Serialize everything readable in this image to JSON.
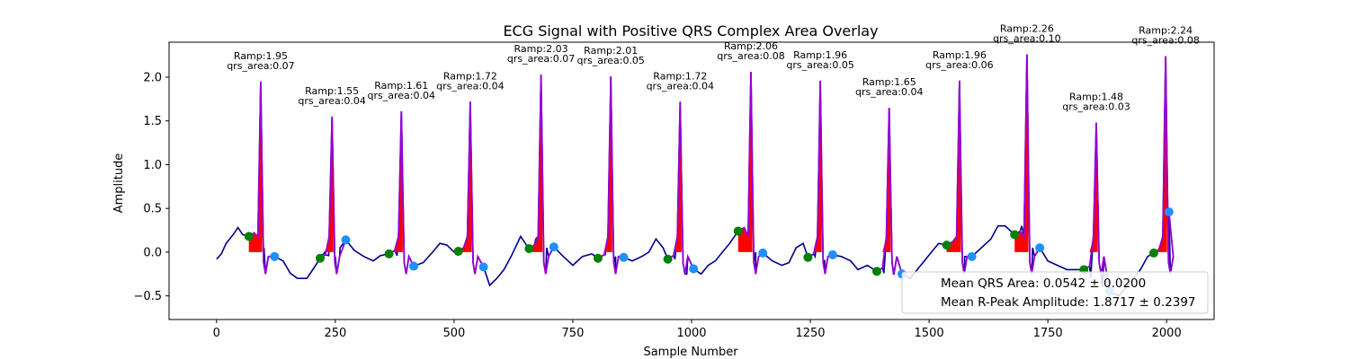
{
  "chart_data": {
    "type": "line",
    "title": "ECG Signal with Positive QRS Complex Area Overlay",
    "xlabel": "Sample Number",
    "ylabel": "Amplitude",
    "xlim": [
      -100,
      2100
    ],
    "ylim": [
      -0.77,
      2.4
    ],
    "xticks": [
      0,
      250,
      500,
      750,
      1000,
      1250,
      1500,
      1750,
      2000
    ],
    "yticks": [
      -0.5,
      0.0,
      0.5,
      1.0,
      1.5,
      2.0
    ],
    "xtick_labels": [
      "0",
      "250",
      "500",
      "750",
      "1000",
      "1250",
      "1500",
      "1750",
      "2000"
    ],
    "ytick_labels": [
      "−0.5",
      "0.0",
      "0.5",
      "1.0",
      "1.5",
      "2.0"
    ],
    "grid": false,
    "colors": {
      "signal": "#00008b",
      "qrs_segment": "#9400d3",
      "qrs_area": "#ff0000",
      "onset_marker": "#008000",
      "offset_marker": "#1e90ff"
    },
    "beats": [
      {
        "r_x": 93,
        "ramp": 1.95,
        "qrs_area": 0.07,
        "ramp_label": "Ramp:1.95",
        "area_label": "qrs_area:0.07",
        "onset_x": 68,
        "onset_y": 0.18,
        "offset_x": 122,
        "offset_y": -0.05
      },
      {
        "r_x": 243,
        "ramp": 1.55,
        "qrs_area": 0.04,
        "ramp_label": "Ramp:1.55",
        "area_label": "qrs_area:0.04",
        "onset_x": 218,
        "onset_y": -0.07,
        "offset_x": 272,
        "offset_y": 0.14
      },
      {
        "r_x": 389,
        "ramp": 1.61,
        "qrs_area": 0.04,
        "ramp_label": "Ramp:1.61",
        "area_label": "qrs_area:0.04",
        "onset_x": 363,
        "onset_y": -0.02,
        "offset_x": 415,
        "offset_y": -0.16
      },
      {
        "r_x": 534,
        "ramp": 1.72,
        "qrs_area": 0.04,
        "ramp_label": "Ramp:1.72",
        "area_label": "qrs_area:0.04",
        "onset_x": 509,
        "onset_y": 0.01,
        "offset_x": 562,
        "offset_y": -0.17
      },
      {
        "r_x": 683,
        "ramp": 2.03,
        "qrs_area": 0.07,
        "ramp_label": "Ramp:2.03",
        "area_label": "qrs_area:0.07",
        "onset_x": 658,
        "onset_y": 0.04,
        "offset_x": 710,
        "offset_y": 0.06
      },
      {
        "r_x": 830,
        "ramp": 2.01,
        "qrs_area": 0.05,
        "ramp_label": "Ramp:2.01",
        "area_label": "qrs_area:0.05",
        "onset_x": 803,
        "onset_y": -0.07,
        "offset_x": 857,
        "offset_y": -0.06
      },
      {
        "r_x": 976,
        "ramp": 1.72,
        "qrs_area": 0.04,
        "ramp_label": "Ramp:1.72",
        "area_label": "qrs_area:0.04",
        "onset_x": 950,
        "onset_y": -0.08,
        "offset_x": 1004,
        "offset_y": -0.19
      },
      {
        "r_x": 1125,
        "ramp": 2.06,
        "qrs_area": 0.08,
        "ramp_label": "Ramp:2.06",
        "area_label": "qrs_area:0.08",
        "onset_x": 1098,
        "onset_y": 0.24,
        "offset_x": 1150,
        "offset_y": -0.01
      },
      {
        "r_x": 1271,
        "ramp": 1.96,
        "qrs_area": 0.05,
        "ramp_label": "Ramp:1.96",
        "area_label": "qrs_area:0.05",
        "onset_x": 1245,
        "onset_y": -0.06,
        "offset_x": 1297,
        "offset_y": -0.03
      },
      {
        "r_x": 1416,
        "ramp": 1.65,
        "qrs_area": 0.04,
        "ramp_label": "Ramp:1.65",
        "area_label": "qrs_area:0.04",
        "onset_x": 1390,
        "onset_y": -0.22,
        "offset_x": 1443,
        "offset_y": -0.25
      },
      {
        "r_x": 1564,
        "ramp": 1.96,
        "qrs_area": 0.06,
        "ramp_label": "Ramp:1.96",
        "area_label": "qrs_area:0.06",
        "onset_x": 1537,
        "onset_y": 0.08,
        "offset_x": 1590,
        "offset_y": -0.05
      },
      {
        "r_x": 1706,
        "ramp": 2.26,
        "qrs_area": 0.1,
        "ramp_label": "Ramp:2.26",
        "area_label": "qrs_area:0.10",
        "onset_x": 1680,
        "onset_y": 0.2,
        "offset_x": 1733,
        "offset_y": 0.05
      },
      {
        "r_x": 1852,
        "ramp": 1.48,
        "qrs_area": 0.03,
        "ramp_label": "Ramp:1.48",
        "area_label": "qrs_area:0.03",
        "onset_x": 1826,
        "onset_y": -0.2,
        "offset_x": 1880,
        "offset_y": -0.45
      },
      {
        "r_x": 1998,
        "ramp": 2.24,
        "qrs_area": 0.08,
        "ramp_label": "Ramp:2.24",
        "area_label": "qrs_area:0.08",
        "onset_x": 1973,
        "onset_y": -0.01,
        "offset_x": 2005,
        "offset_y": 0.46
      }
    ],
    "baseline_points": [
      [
        0,
        -0.08
      ],
      [
        10,
        -0.02
      ],
      [
        20,
        0.1
      ],
      [
        35,
        0.2
      ],
      [
        45,
        0.28
      ],
      [
        55,
        0.2
      ],
      [
        68,
        0.18
      ],
      [
        85,
        0.06
      ],
      [
        100,
        0.05
      ],
      [
        122,
        -0.05
      ],
      [
        140,
        -0.1
      ],
      [
        155,
        -0.24
      ],
      [
        170,
        -0.3
      ],
      [
        190,
        -0.3
      ],
      [
        205,
        -0.18
      ],
      [
        218,
        -0.07
      ],
      [
        228,
        0.0
      ],
      [
        236,
        -0.04
      ],
      [
        250,
        -0.05
      ],
      [
        260,
        0.05
      ],
      [
        272,
        0.14
      ],
      [
        290,
        0.02
      ],
      [
        310,
        -0.05
      ],
      [
        330,
        -0.1
      ],
      [
        345,
        -0.04
      ],
      [
        363,
        -0.02
      ],
      [
        380,
        -0.04
      ],
      [
        395,
        -0.06
      ],
      [
        415,
        -0.16
      ],
      [
        435,
        -0.12
      ],
      [
        455,
        0.0
      ],
      [
        470,
        0.1
      ],
      [
        485,
        0.08
      ],
      [
        500,
        0.0
      ],
      [
        509,
        0.01
      ],
      [
        524,
        0.02
      ],
      [
        540,
        -0.05
      ],
      [
        562,
        -0.17
      ],
      [
        575,
        -0.38
      ],
      [
        590,
        -0.3
      ],
      [
        605,
        -0.2
      ],
      [
        620,
        -0.05
      ],
      [
        640,
        0.18
      ],
      [
        650,
        0.1
      ],
      [
        658,
        0.04
      ],
      [
        672,
        0.15
      ],
      [
        695,
        0.05
      ],
      [
        710,
        0.06
      ],
      [
        730,
        -0.05
      ],
      [
        750,
        -0.15
      ],
      [
        770,
        -0.05
      ],
      [
        790,
        -0.02
      ],
      [
        803,
        -0.07
      ],
      [
        818,
        -0.03
      ],
      [
        840,
        -0.05
      ],
      [
        857,
        -0.06
      ],
      [
        875,
        -0.1
      ],
      [
        895,
        -0.05
      ],
      [
        910,
        0.0
      ],
      [
        925,
        0.15
      ],
      [
        940,
        0.05
      ],
      [
        950,
        -0.08
      ],
      [
        965,
        -0.08
      ],
      [
        990,
        -0.25
      ],
      [
        1004,
        -0.19
      ],
      [
        1020,
        -0.25
      ],
      [
        1035,
        -0.15
      ],
      [
        1050,
        -0.1
      ],
      [
        1065,
        0.0
      ],
      [
        1080,
        0.1
      ],
      [
        1098,
        0.24
      ],
      [
        1110,
        0.22
      ],
      [
        1135,
        0.0
      ],
      [
        1150,
        -0.01
      ],
      [
        1170,
        -0.1
      ],
      [
        1190,
        -0.15
      ],
      [
        1205,
        -0.12
      ],
      [
        1220,
        0.05
      ],
      [
        1235,
        0.1
      ],
      [
        1245,
        -0.06
      ],
      [
        1260,
        -0.05
      ],
      [
        1280,
        -0.1
      ],
      [
        1297,
        -0.03
      ],
      [
        1315,
        -0.05
      ],
      [
        1335,
        -0.1
      ],
      [
        1350,
        -0.2
      ],
      [
        1370,
        -0.15
      ],
      [
        1390,
        -0.22
      ],
      [
        1405,
        -0.24
      ],
      [
        1425,
        -0.25
      ],
      [
        1443,
        -0.25
      ],
      [
        1460,
        -0.3
      ],
      [
        1475,
        -0.2
      ],
      [
        1490,
        -0.1
      ],
      [
        1505,
        0.0
      ],
      [
        1520,
        0.1
      ],
      [
        1537,
        0.08
      ],
      [
        1552,
        0.1
      ],
      [
        1575,
        -0.05
      ],
      [
        1590,
        -0.05
      ],
      [
        1610,
        0.05
      ],
      [
        1630,
        0.15
      ],
      [
        1645,
        0.3
      ],
      [
        1660,
        0.3
      ],
      [
        1680,
        0.2
      ],
      [
        1695,
        0.3
      ],
      [
        1718,
        0.05
      ],
      [
        1733,
        0.05
      ],
      [
        1750,
        -0.1
      ],
      [
        1770,
        -0.15
      ],
      [
        1790,
        -0.2
      ],
      [
        1810,
        -0.2
      ],
      [
        1826,
        -0.2
      ],
      [
        1840,
        -0.3
      ],
      [
        1865,
        -0.4
      ],
      [
        1880,
        -0.45
      ],
      [
        1900,
        -0.5
      ],
      [
        1915,
        -0.4
      ],
      [
        1930,
        -0.3
      ],
      [
        1945,
        -0.2
      ],
      [
        1960,
        -0.05
      ],
      [
        1973,
        -0.01
      ],
      [
        1988,
        0.05
      ],
      [
        2005,
        0.46
      ]
    ],
    "legend": {
      "placement": "lower right",
      "entries": [
        {
          "label": "Mean QRS Area",
          "value_text": "0.0542 ± 0.0200",
          "text": "Mean QRS Area: 0.0542 ± 0.0200"
        },
        {
          "label": "Mean R-Peak Amplitude",
          "value_text": "1.8717 ± 0.2397",
          "text": "Mean R-Peak Amplitude: 1.8717 ± 0.2397"
        }
      ]
    }
  }
}
